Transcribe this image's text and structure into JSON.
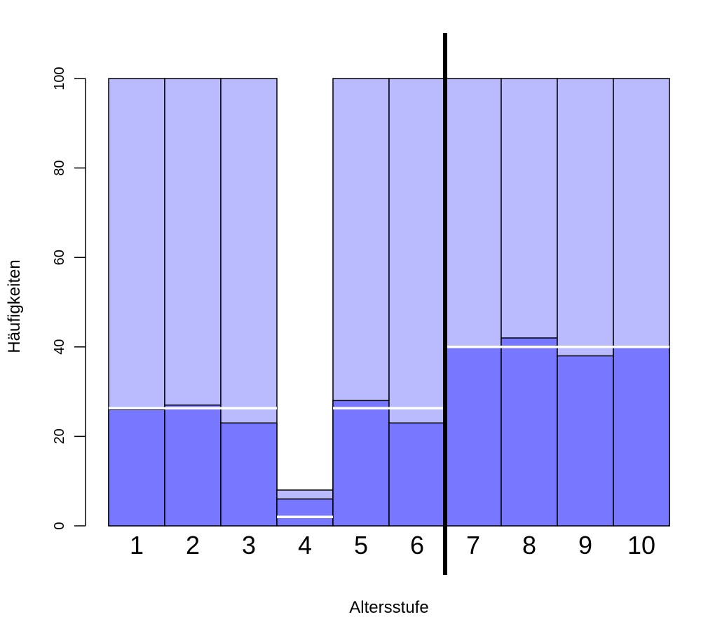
{
  "chart_data": {
    "type": "bar",
    "title": "",
    "xlabel": "Altersstufe",
    "ylabel": "Häufigkeiten",
    "ylim": [
      0,
      100
    ],
    "yticks": [
      "0",
      "20",
      "40",
      "60",
      "80",
      "100"
    ],
    "categories": [
      "1",
      "2",
      "3",
      "4",
      "5",
      "6",
      "7",
      "8",
      "9",
      "10"
    ],
    "series": [
      {
        "values": [
          100,
          100,
          100,
          8,
          100,
          100,
          100,
          100,
          100,
          100
        ]
      },
      {
        "values": [
          26,
          27,
          23,
          6,
          28,
          23,
          40,
          42,
          38,
          40
        ]
      }
    ],
    "reference_lines": [
      {
        "from_category": "1",
        "to_category": "3",
        "value": 26.3
      },
      {
        "from_category": "4",
        "to_category": "4",
        "value": 2
      },
      {
        "from_category": "5",
        "to_category": "6",
        "value": 26.3
      },
      {
        "from_category": "7",
        "to_category": "10",
        "value": 40
      }
    ],
    "divider_after_category": "6",
    "colors": {
      "upper": "#babaff",
      "lower": "#7777ff",
      "reference": "#ffffff",
      "divider": "#000000"
    },
    "grid": false,
    "legend": "none"
  }
}
